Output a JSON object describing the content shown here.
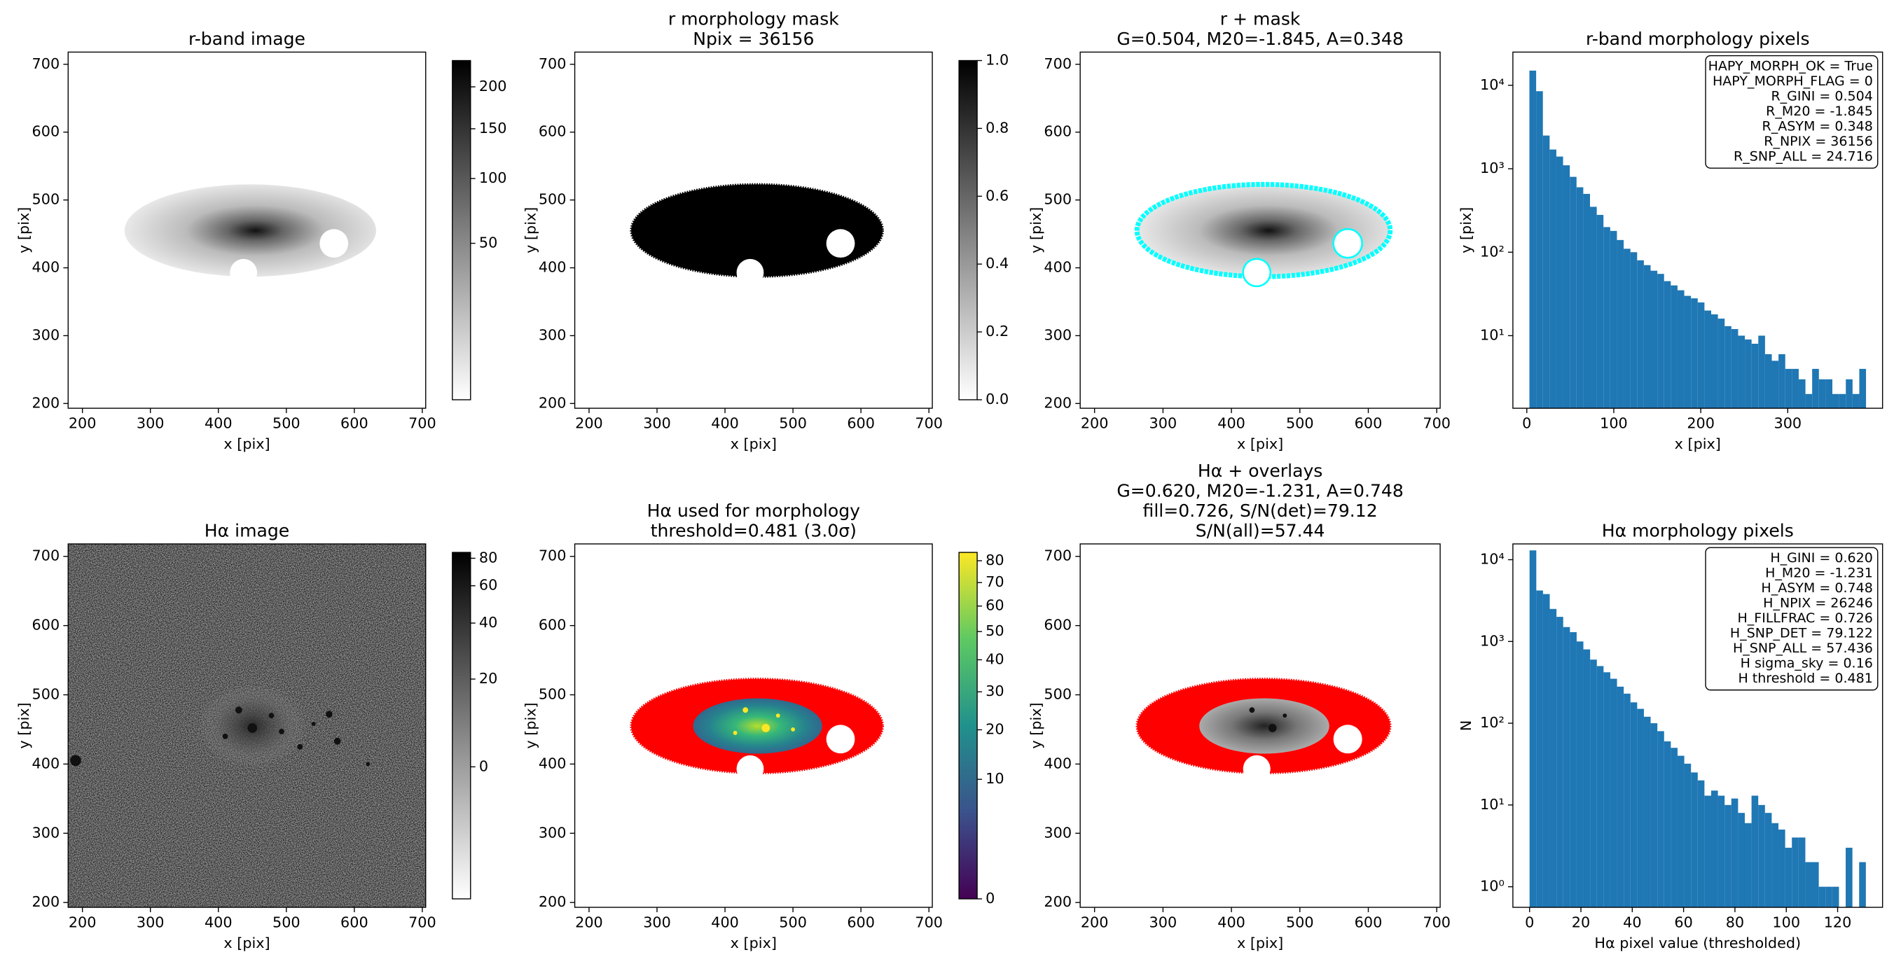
{
  "chart_data": [
    {
      "type": "image",
      "title": [
        "r-band image"
      ],
      "xlabel": "x [pix]",
      "ylabel": "y [pix]",
      "xlim": [
        179,
        705
      ],
      "ylim": [
        193,
        718
      ],
      "xticks": [
        200,
        300,
        400,
        500,
        600,
        700
      ],
      "yticks": [
        200,
        300,
        400,
        500,
        600,
        700
      ],
      "cmap": "gray_r",
      "colorbar": {
        "clim": [
          0,
          235
        ],
        "stretch": "sqrt",
        "ticks": [
          50,
          100,
          150,
          200
        ]
      }
    },
    {
      "type": "image",
      "title": [
        "r morphology mask",
        "Npix = 36156"
      ],
      "xlabel": "x [pix]",
      "ylabel": "y [pix]",
      "xlim": [
        179,
        705
      ],
      "ylim": [
        193,
        718
      ],
      "xticks": [
        200,
        300,
        400,
        500,
        600,
        700
      ],
      "yticks": [
        200,
        300,
        400,
        500,
        600,
        700
      ],
      "cmap": "gray_r",
      "colorbar": {
        "clim": [
          0,
          1
        ],
        "stretch": "linear",
        "ticks": [
          {
            "value": 0,
            "label": "0.0"
          },
          0.2,
          0.4,
          0.6,
          0.8,
          {
            "value": 1,
            "label": "1.0"
          }
        ]
      }
    },
    {
      "type": "image",
      "title": [
        "r + mask",
        "G=0.504, M20=-1.845, A=0.348"
      ],
      "xlabel": "x [pix]",
      "ylabel": "y [pix]",
      "xlim": [
        179,
        705
      ],
      "ylim": [
        193,
        718
      ],
      "xticks": [
        200,
        300,
        400,
        500,
        600,
        700
      ],
      "yticks": [
        200,
        300,
        400,
        500,
        600,
        700
      ],
      "cmap": "gray_r",
      "overlay_color": "#00ffff"
    },
    {
      "type": "histogram",
      "title": [
        "r-band morphology pixels"
      ],
      "xlabel": "x [pix]",
      "ylabel": "y [pix]",
      "color": "#1f77b4",
      "log_y": true,
      "xlim": [
        -16,
        409
      ],
      "ylim": [
        1.35,
        25000
      ],
      "xticks": [
        0,
        100,
        200,
        300
      ],
      "yticks": [
        {
          "value": 10,
          "label": "10¹"
        },
        {
          "value": 100,
          "label": "10²"
        },
        {
          "value": 1000,
          "label": "10³"
        },
        {
          "value": 10000,
          "label": "10⁴"
        }
      ],
      "bins": [
        3,
        10.74,
        18.48,
        26.22,
        33.96,
        41.7,
        49.44,
        57.18,
        64.92,
        72.66,
        80.4,
        88.14,
        95.88,
        103.62,
        111.36,
        119.1,
        126.84,
        134.58,
        142.32,
        150.06,
        157.8,
        165.54,
        173.28,
        181.02,
        188.76,
        196.5,
        204.24,
        211.98,
        219.72,
        227.46,
        235.2,
        242.94,
        250.68,
        258.42,
        266.16,
        273.9,
        281.64,
        289.38,
        297.12,
        304.86,
        312.6,
        320.34,
        328.08,
        335.82,
        343.56,
        351.3,
        359.04,
        366.78,
        374.52,
        382.26,
        390
      ],
      "counts": [
        15000,
        8500,
        2500,
        1700,
        1400,
        1100,
        800,
        600,
        500,
        350,
        280,
        200,
        180,
        140,
        110,
        100,
        80,
        70,
        60,
        55,
        45,
        40,
        35,
        30,
        28,
        25,
        20,
        18,
        16,
        13,
        12,
        10,
        9,
        8,
        10,
        6,
        5,
        6,
        4,
        4,
        3,
        2,
        4,
        3,
        3,
        2,
        2,
        3,
        2,
        4
      ],
      "textbox": [
        "HAPY_MORPH_OK = True",
        "HAPY_MORPH_FLAG = 0",
        "R_GINI = 0.504",
        "R_M20 = -1.845",
        "R_ASYM = 0.348",
        "R_NPIX = 36156",
        "R_SNP_ALL = 24.716"
      ]
    },
    {
      "type": "image",
      "title": [
        "Hα image"
      ],
      "xlabel": "x [pix]",
      "ylabel": "y [pix]",
      "xlim": [
        179,
        705
      ],
      "ylim": [
        193,
        718
      ],
      "xticks": [
        200,
        300,
        400,
        500,
        600,
        700
      ],
      "yticks": [
        200,
        300,
        400,
        500,
        600,
        700
      ],
      "cmap": "gray_r",
      "colorbar": {
        "clim": [
          -35,
          85
        ],
        "stretch": "asinh",
        "ticks": [
          0,
          20,
          40,
          60,
          80
        ]
      }
    },
    {
      "type": "image",
      "title": [
        "Hα used for morphology",
        "threshold=0.481 (3.0σ)"
      ],
      "xlabel": "x [pix]",
      "ylabel": "y [pix]",
      "xlim": [
        179,
        705
      ],
      "ylim": [
        193,
        718
      ],
      "xticks": [
        200,
        300,
        400,
        500,
        600,
        700
      ],
      "yticks": [
        200,
        300,
        400,
        500,
        600,
        700
      ],
      "cmap": "viridis",
      "overlay_color": "#ff0000",
      "colorbar": {
        "clim": [
          0,
          84
        ],
        "stretch": "sqrt",
        "ticks": [
          0,
          10,
          20,
          30,
          40,
          50,
          60,
          70,
          80
        ]
      }
    },
    {
      "type": "image",
      "title": [
        "Hα + overlays",
        "G=0.620, M20=-1.231, A=0.748",
        "fill=0.726, S/N(det)=79.12",
        "S/N(all)=57.44"
      ],
      "xlabel": "x [pix]",
      "ylabel": "y [pix]",
      "xlim": [
        179,
        705
      ],
      "ylim": [
        193,
        718
      ],
      "xticks": [
        200,
        300,
        400,
        500,
        600,
        700
      ],
      "yticks": [
        200,
        300,
        400,
        500,
        600,
        700
      ],
      "cmap": "gray_r",
      "overlay_color": "#ff0000"
    },
    {
      "type": "histogram",
      "title": [
        "Hα morphology pixels"
      ],
      "xlabel": "Hα pixel value (thresholded)",
      "ylabel": "N",
      "color": "#1f77b4",
      "log_y": true,
      "xlim": [
        -6.5,
        137.5
      ],
      "ylim": [
        0.56,
        15600
      ],
      "xticks": [
        0,
        20,
        40,
        60,
        80,
        100,
        120
      ],
      "yticks": [
        {
          "value": 1,
          "label": "10⁰"
        },
        {
          "value": 10,
          "label": "10¹"
        },
        {
          "value": 100,
          "label": "10²"
        },
        {
          "value": 1000,
          "label": "10³"
        },
        {
          "value": 10000,
          "label": "10⁴"
        }
      ],
      "bins": [
        0,
        2.62,
        5.24,
        7.86,
        10.48,
        13.1,
        15.72,
        18.34,
        20.96,
        23.58,
        26.2,
        28.82,
        31.44,
        34.06,
        36.68,
        39.3,
        41.92,
        44.54,
        47.16,
        49.78,
        52.4,
        55.02,
        57.64,
        60.26,
        62.88,
        65.5,
        68.12,
        70.74,
        73.36,
        75.98,
        78.6,
        81.22,
        83.84,
        86.46,
        89.08,
        91.7,
        94.32,
        96.94,
        99.56,
        102.18,
        104.8,
        107.42,
        110.04,
        112.66,
        115.28,
        117.9,
        120.52,
        123.14,
        125.76,
        128.38,
        131
      ],
      "counts": [
        13000,
        4200,
        3800,
        2500,
        2000,
        1500,
        1300,
        1000,
        800,
        600,
        500,
        420,
        350,
        280,
        230,
        180,
        150,
        120,
        100,
        80,
        60,
        50,
        40,
        32,
        25,
        20,
        13,
        15,
        13,
        10,
        12,
        8,
        6,
        13,
        10,
        8,
        6,
        5,
        3,
        4,
        4,
        2,
        2,
        1,
        1,
        1,
        0,
        3,
        0,
        2
      ],
      "textbox": [
        "H_GINI = 0.620",
        "H_M20 = -1.231",
        "H_ASYM = 0.748",
        "H_NPIX = 26246",
        "H_FILLFRAC = 0.726",
        "H_SNP_DET = 79.122",
        "H_SNP_ALL = 57.436",
        "H sigma_sky = 0.16",
        "H threshold = 0.481"
      ]
    }
  ]
}
